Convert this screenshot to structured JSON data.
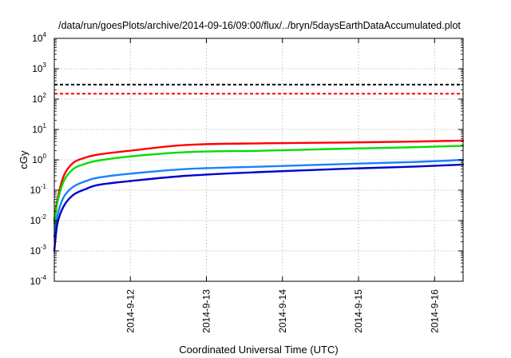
{
  "chart_data": {
    "type": "line",
    "title": "/data/run/goesPlots/archive/2014-09-16/09:00/flux/../bryn/5daysEarthDataAccumulated.plot",
    "xlabel": "Coordinated Universal Time (UTC)",
    "ylabel": "cGy",
    "y_scale": "log",
    "ylim": [
      0.0001,
      10000
    ],
    "y_ticks": [
      {
        "value": 0.0001,
        "base": "10",
        "exp": "-4"
      },
      {
        "value": 0.001,
        "base": "10",
        "exp": "-3"
      },
      {
        "value": 0.01,
        "base": "10",
        "exp": "-2"
      },
      {
        "value": 0.1,
        "base": "10",
        "exp": "-1"
      },
      {
        "value": 1,
        "base": "10",
        "exp": "0"
      },
      {
        "value": 10,
        "base": "10",
        "exp": "1"
      },
      {
        "value": 100,
        "base": "10",
        "exp": "2"
      },
      {
        "value": 1000,
        "base": "10",
        "exp": "3"
      },
      {
        "value": 10000,
        "base": "10",
        "exp": "4"
      }
    ],
    "xlim": [
      "2014-09-11 00:00",
      "2014-09-16 09:00"
    ],
    "x_ticks": [
      "2014-9-12",
      "2014-9-13",
      "2014-9-14",
      "2014-9-15",
      "2014-9-16"
    ],
    "grid": true,
    "legend": "none",
    "series": [
      {
        "color": "#ff0000",
        "x": [
          "2014-09-11 00:00",
          "2014-09-11 01:00",
          "2014-09-11 03:00",
          "2014-09-11 06:00",
          "2014-09-11 10:00",
          "2014-09-11 14:00",
          "2014-09-12 00:00",
          "2014-09-12 18:00",
          "2014-09-13 18:00",
          "2014-09-14 18:00",
          "2014-09-15 18:00",
          "2014-09-16 09:00"
        ],
        "y": [
          0.01,
          0.05,
          0.3,
          0.8,
          1.2,
          1.5,
          2.0,
          3.1,
          3.5,
          3.7,
          4.0,
          4.3
        ]
      },
      {
        "color": "#00dd00",
        "x": [
          "2014-09-11 00:00",
          "2014-09-11 01:00",
          "2014-09-11 03:00",
          "2014-09-11 06:00",
          "2014-09-11 10:00",
          "2014-09-11 14:00",
          "2014-09-12 00:00",
          "2014-09-12 18:00",
          "2014-09-13 18:00",
          "2014-09-14 18:00",
          "2014-09-15 18:00",
          "2014-09-16 09:00"
        ],
        "y": [
          0.008,
          0.04,
          0.2,
          0.5,
          0.75,
          0.95,
          1.3,
          1.8,
          2.0,
          2.3,
          2.6,
          2.9
        ]
      },
      {
        "color": "#1a80ff",
        "x": [
          "2014-09-11 00:00",
          "2014-09-11 01:00",
          "2014-09-11 03:00",
          "2014-09-11 06:00",
          "2014-09-11 10:00",
          "2014-09-11 14:00",
          "2014-09-12 00:00",
          "2014-09-12 18:00",
          "2014-09-13 18:00",
          "2014-09-14 18:00",
          "2014-09-15 18:00",
          "2014-09-16 09:00"
        ],
        "y": [
          0.003,
          0.015,
          0.06,
          0.13,
          0.2,
          0.26,
          0.35,
          0.5,
          0.6,
          0.72,
          0.85,
          1.0
        ]
      },
      {
        "color": "#0000cc",
        "x": [
          "2014-09-11 00:00",
          "2014-09-11 01:00",
          "2014-09-11 03:00",
          "2014-09-11 06:00",
          "2014-09-11 10:00",
          "2014-09-11 14:00",
          "2014-09-12 00:00",
          "2014-09-12 18:00",
          "2014-09-13 18:00",
          "2014-09-14 18:00",
          "2014-09-15 18:00",
          "2014-09-16 09:00"
        ],
        "y": [
          0.001,
          0.008,
          0.03,
          0.07,
          0.11,
          0.15,
          0.2,
          0.3,
          0.4,
          0.5,
          0.6,
          0.7
        ]
      }
    ],
    "thresholds": [
      {
        "value": 300,
        "color": "#000000",
        "style": "dashed"
      },
      {
        "value": 150,
        "color": "#ff0000",
        "style": "dashed"
      }
    ]
  }
}
